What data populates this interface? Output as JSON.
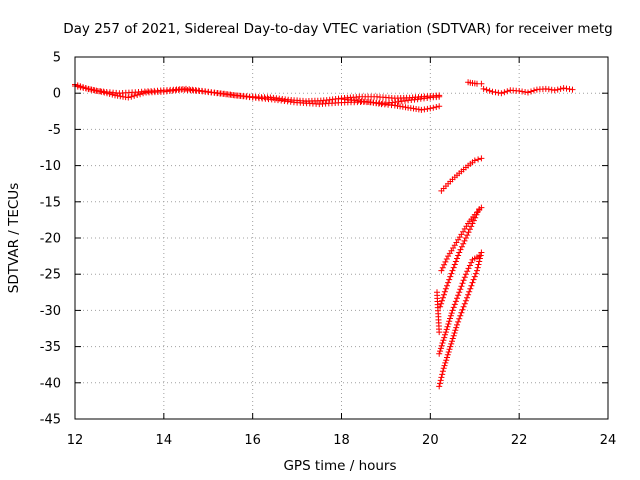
{
  "chart_data": {
    "type": "scatter",
    "title": "Day 257 of 2021, Sidereal Day-to-day VTEC variation (SDTVAR) for receiver metg",
    "xlabel": "GPS time / hours",
    "ylabel": "SDTVAR / TECUs",
    "xlim": [
      12,
      24
    ],
    "ylim": [
      -45,
      5
    ],
    "x_ticks": [
      "12",
      "14",
      "16",
      "18",
      "20",
      "22",
      "24"
    ],
    "y_ticks": [
      "5",
      "0",
      "-5",
      "-10",
      "-15",
      "-20",
      "-25",
      "-30",
      "-35",
      "-40",
      "-45"
    ],
    "grid": true,
    "marker": "+",
    "color": "#ff0000",
    "series": [
      {
        "segments": [
          {
            "x": [
              12.0,
              12.3,
              12.6,
              12.9,
              13.2,
              13.6,
              14.0,
              14.4,
              14.8,
              15.2,
              15.6,
              16.0,
              16.4,
              16.8,
              17.2,
              17.6,
              18.0,
              18.4,
              18.8,
              19.2,
              19.6,
              20.0,
              20.2
            ],
            "y": [
              1.2,
              0.6,
              0.2,
              -0.3,
              -0.6,
              0.1,
              0.2,
              0.5,
              0.3,
              0.0,
              -0.3,
              -0.5,
              -0.6,
              -0.9,
              -1.1,
              -1.0,
              -0.7,
              -0.5,
              -0.5,
              -0.7,
              -0.6,
              -0.4,
              -0.3
            ]
          },
          {
            "x": [
              12.0,
              12.5,
              13.0,
              13.5,
              14.0,
              14.5,
              15.0,
              15.5,
              16.0,
              16.5,
              17.0,
              17.5,
              18.0,
              18.5,
              19.0,
              19.5,
              20.0,
              20.2
            ],
            "y": [
              1.0,
              0.3,
              0.0,
              0.2,
              0.4,
              0.6,
              0.2,
              -0.2,
              -0.6,
              -0.9,
              -1.3,
              -1.5,
              -1.3,
              -1.2,
              -1.4,
              -1.0,
              -0.6,
              -0.5
            ]
          },
          {
            "x": [
              18.0,
              18.3,
              18.6,
              18.9,
              19.2,
              19.5,
              19.8,
              20.0,
              20.2
            ],
            "y": [
              -0.8,
              -1.0,
              -1.2,
              -1.5,
              -1.7,
              -2.0,
              -2.3,
              -2.1,
              -1.8
            ]
          },
          {
            "x": [
              20.85,
              20.95,
              21.05,
              21.15
            ],
            "y": [
              1.5,
              1.4,
              1.3,
              1.3
            ]
          },
          {
            "x": [
              21.2,
              21.4,
              21.6,
              21.8,
              22.0,
              22.2,
              22.4,
              22.6,
              22.8,
              23.0,
              23.2
            ],
            "y": [
              0.6,
              0.2,
              0.0,
              0.4,
              0.3,
              0.1,
              0.5,
              0.6,
              0.4,
              0.7,
              0.5
            ]
          },
          {
            "x": [
              20.25,
              20.4,
              20.55,
              20.7,
              20.85,
              21.0,
              21.15
            ],
            "y": [
              -13.5,
              -12.5,
              -11.6,
              -10.8,
              -10.0,
              -9.3,
              -9.0
            ]
          },
          {
            "x": [
              20.25,
              20.4,
              20.55,
              20.7,
              20.85,
              21.0,
              21.15
            ],
            "y": [
              -24.5,
              -22.5,
              -21.0,
              -19.5,
              -18.0,
              -16.8,
              -15.8
            ]
          },
          {
            "x": [
              20.22,
              20.35,
              20.5,
              20.65,
              20.8,
              20.95,
              21.1
            ],
            "y": [
              -29.5,
              -27.0,
              -24.5,
              -22.0,
              -20.0,
              -18.0,
              -16.0
            ]
          },
          {
            "x": [
              20.2,
              20.35,
              20.5,
              20.65,
              20.8,
              20.95,
              21.1
            ],
            "y": [
              -36.0,
              -33.0,
              -30.0,
              -27.5,
              -25.0,
              -23.0,
              -22.5
            ]
          },
          {
            "x": [
              20.2,
              20.3,
              20.45,
              20.6,
              20.75,
              20.9,
              21.05,
              21.15
            ],
            "y": [
              -40.5,
              -38.0,
              -35.0,
              -32.0,
              -29.5,
              -27.0,
              -24.5,
              -22.0
            ]
          },
          {
            "x": [
              20.15,
              20.2
            ],
            "y": [
              -27.5,
              -33.0
            ]
          }
        ]
      }
    ]
  }
}
